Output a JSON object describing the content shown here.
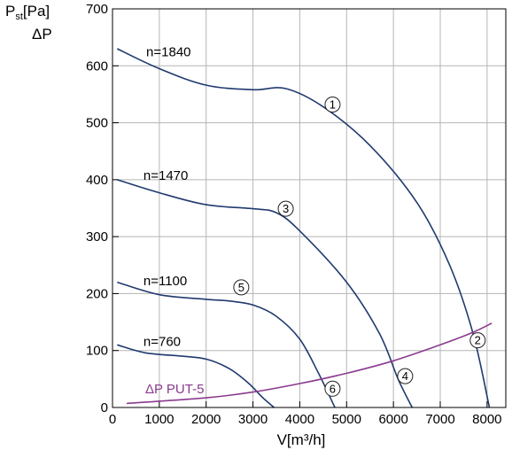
{
  "chart_data": {
    "type": "line",
    "ylabel_main": "P",
    "ylabel_sub": "st",
    "ylabel_unit": "[Pa]",
    "ylabel_line2": "ΔP",
    "xlabel": "V[m³/h]",
    "xlim": [
      0,
      8400
    ],
    "ylim": [
      0,
      700
    ],
    "x_ticks": [
      0,
      1000,
      2000,
      3000,
      4000,
      5000,
      6000,
      7000,
      8000
    ],
    "y_ticks": [
      0,
      100,
      200,
      300,
      400,
      500,
      600,
      700
    ],
    "grid": true,
    "colors": {
      "fan": "#1f3a6e",
      "system": "#8b3a8f",
      "grid": "#b5b5b5"
    },
    "series": [
      {
        "label": "n=1840",
        "marker": "1",
        "kind": "fan",
        "x": [
          100,
          1000,
          2000,
          3000,
          3700,
          4500,
          5500,
          6500,
          7200,
          7700,
          8050
        ],
        "y": [
          630,
          595,
          566,
          558,
          560,
          528,
          460,
          360,
          250,
          130,
          0
        ]
      },
      {
        "label": "n=1470",
        "marker": "3",
        "kind": "fan",
        "x": [
          100,
          1000,
          2000,
          3000,
          3500,
          4000,
          5000,
          5700,
          6100,
          6400
        ],
        "y": [
          400,
          377,
          356,
          349,
          342,
          310,
          220,
          130,
          50,
          0
        ]
      },
      {
        "label": "n=1100",
        "marker": "5",
        "kind": "fan",
        "x": [
          100,
          1000,
          2000,
          2500,
          3000,
          3500,
          4000,
          4400,
          4750
        ],
        "y": [
          220,
          198,
          190,
          187,
          180,
          160,
          120,
          60,
          0
        ]
      },
      {
        "label": "n=760",
        "marker": "",
        "kind": "fan",
        "x": [
          100,
          700,
          1500,
          2000,
          2500,
          2900,
          3200,
          3450
        ],
        "y": [
          110,
          96,
          90,
          85,
          68,
          43,
          18,
          0
        ]
      },
      {
        "label": "ΔP PUT-5",
        "marker": "",
        "kind": "system",
        "x": [
          300,
          2000,
          3000,
          4000,
          5000,
          6000,
          7000,
          7700,
          8100
        ],
        "y": [
          7,
          17,
          27,
          42,
          60,
          82,
          110,
          132,
          148
        ]
      }
    ],
    "markers": [
      {
        "text": "1",
        "x": 4700,
        "y": 532
      },
      {
        "text": "3",
        "x": 3700,
        "y": 349
      },
      {
        "text": "5",
        "x": 2750,
        "y": 211
      },
      {
        "text": "2",
        "x": 7800,
        "y": 118
      },
      {
        "text": "4",
        "x": 6250,
        "y": 55
      },
      {
        "text": "6",
        "x": 4700,
        "y": 33
      }
    ],
    "curve_labels": [
      {
        "text": "n=1840",
        "x": 720,
        "y": 617
      },
      {
        "text": "n=1470",
        "x": 660,
        "y": 400
      },
      {
        "text": "n=1100",
        "x": 660,
        "y": 215
      },
      {
        "text": "n=760",
        "x": 660,
        "y": 108
      },
      {
        "text": "ΔP PUT-5",
        "x": 700,
        "y": 25
      }
    ]
  }
}
